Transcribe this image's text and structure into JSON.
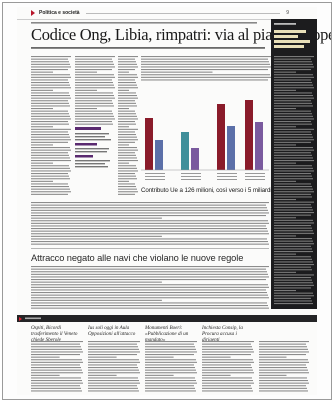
{
  "header": {
    "section": "Politica e società",
    "page_number": "9"
  },
  "lead_story": {
    "headline": "Codice Ong, Libia, rimpatri: via al piano europeo",
    "chart_caption": "Contributo Ue a 126 milioni, così verso i 5 miliardi"
  },
  "second_story": {
    "headline": "Attracco negato alle navi che violano le nuove regole"
  },
  "footer_briefs": {
    "items": [
      {
        "title": "Ospiti, Bicordi trasferimento il Veneto chiede Sberole"
      },
      {
        "title": "Ius soli oggi in Aula Opposizioni all'attacco"
      },
      {
        "title": "Monumenti Boeri: «Pubblicazione di un mandato»"
      },
      {
        "title": "Inchiesta Consip, la Procura accusa i dirigenti"
      },
      {
        "title": ""
      }
    ]
  },
  "chart_data": {
    "type": "bar",
    "colors": [
      "#8a1b2a",
      "#5b6fa8",
      "#3f8f9a",
      "#7a5a9e"
    ]
  }
}
